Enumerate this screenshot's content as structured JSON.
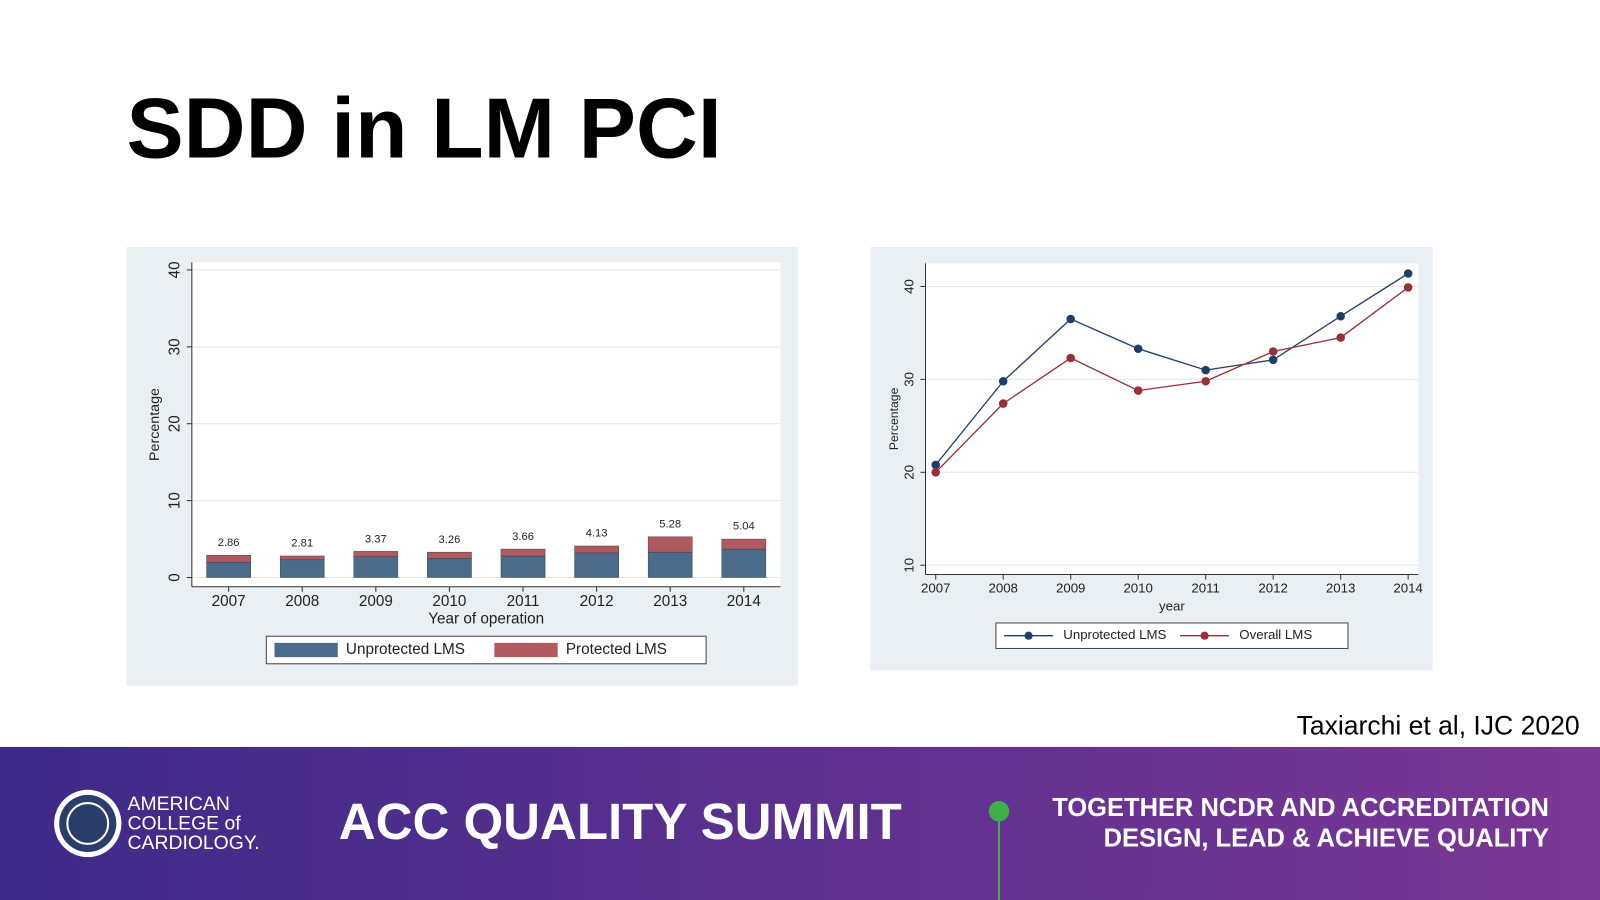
{
  "title": "SDD in LM PCI",
  "chart_data": [
    {
      "type": "bar",
      "stacked": true,
      "categories": [
        "2007",
        "2008",
        "2009",
        "2010",
        "2011",
        "2012",
        "2013",
        "2014"
      ],
      "series": [
        {
          "name": "Unprotected LMS",
          "color": "#4a6b8a",
          "values": [
            2.0,
            2.3,
            2.7,
            2.5,
            2.8,
            3.2,
            3.3,
            3.7
          ]
        },
        {
          "name": "Protected LMS",
          "color": "#b05a5f",
          "values": [
            0.9,
            0.5,
            0.7,
            0.8,
            0.9,
            0.9,
            2.0,
            1.3
          ]
        }
      ],
      "totals": [
        2.86,
        2.81,
        3.37,
        3.26,
        3.66,
        4.13,
        5.28,
        5.04
      ],
      "ylim": [
        -1.2,
        41
      ],
      "yticks": [
        0,
        10,
        20,
        30,
        40
      ],
      "grid": true,
      "y_label": "Percentage",
      "x_label": "Year of operation",
      "legend": "bottom"
    },
    {
      "type": "line",
      "categories": [
        "2007",
        "2008",
        "2009",
        "2010",
        "2011",
        "2012",
        "2013",
        "2014"
      ],
      "series": [
        {
          "name": "Unprotected LMS",
          "color": "#1f3f66",
          "values": [
            20.8,
            29.8,
            36.5,
            33.3,
            31.0,
            32.1,
            36.8,
            41.4
          ]
        },
        {
          "name": "Overall LMS",
          "color": "#9a2f3a",
          "values": [
            20.0,
            27.4,
            32.3,
            28.8,
            29.8,
            33.0,
            34.5,
            39.9
          ]
        }
      ],
      "ylim": [
        9,
        42.5
      ],
      "yticks": [
        10,
        20,
        30,
        40
      ],
      "grid": true,
      "y_label": "Percentage",
      "x_label": "year",
      "legend": "bottom"
    }
  ],
  "citation": "Taxiarchi et al, IJC 2020",
  "footer": {
    "logo_lines": [
      "AMERICAN",
      "COLLEGE of",
      "CARDIOLOGY."
    ],
    "event": "ACC QUALITY SUMMIT",
    "tagline": [
      "TOGETHER NCDR AND ACCREDITATION",
      "DESIGN, LEAD & ACHIEVE QUALITY"
    ]
  }
}
